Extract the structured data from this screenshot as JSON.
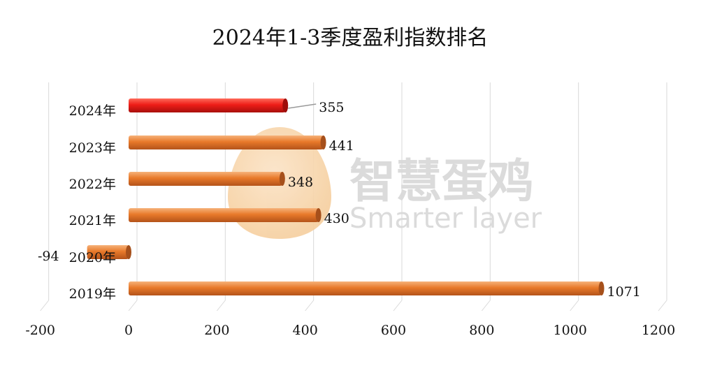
{
  "chart_data": {
    "type": "bar",
    "orientation": "horizontal",
    "title": "2024年1-3季度盈利指数排名",
    "categories": [
      "2024年",
      "2023年",
      "2022年",
      "2021年",
      "2020年",
      "2019年"
    ],
    "values": [
      355,
      441,
      348,
      430,
      -94,
      1071
    ],
    "data_labels": [
      "355",
      "441",
      "348",
      "430",
      "-94",
      "1071"
    ],
    "xlim": [
      -200,
      1200
    ],
    "xticks": [
      "-200",
      "0",
      "200",
      "400",
      "600",
      "800",
      "1000",
      "1200"
    ],
    "grid": true,
    "legend": "none",
    "colors": {
      "highlight": "#e8231e",
      "default": "#e8792a"
    }
  },
  "watermark": {
    "cn": "智慧蛋鸡",
    "en": "Smarter layer"
  }
}
